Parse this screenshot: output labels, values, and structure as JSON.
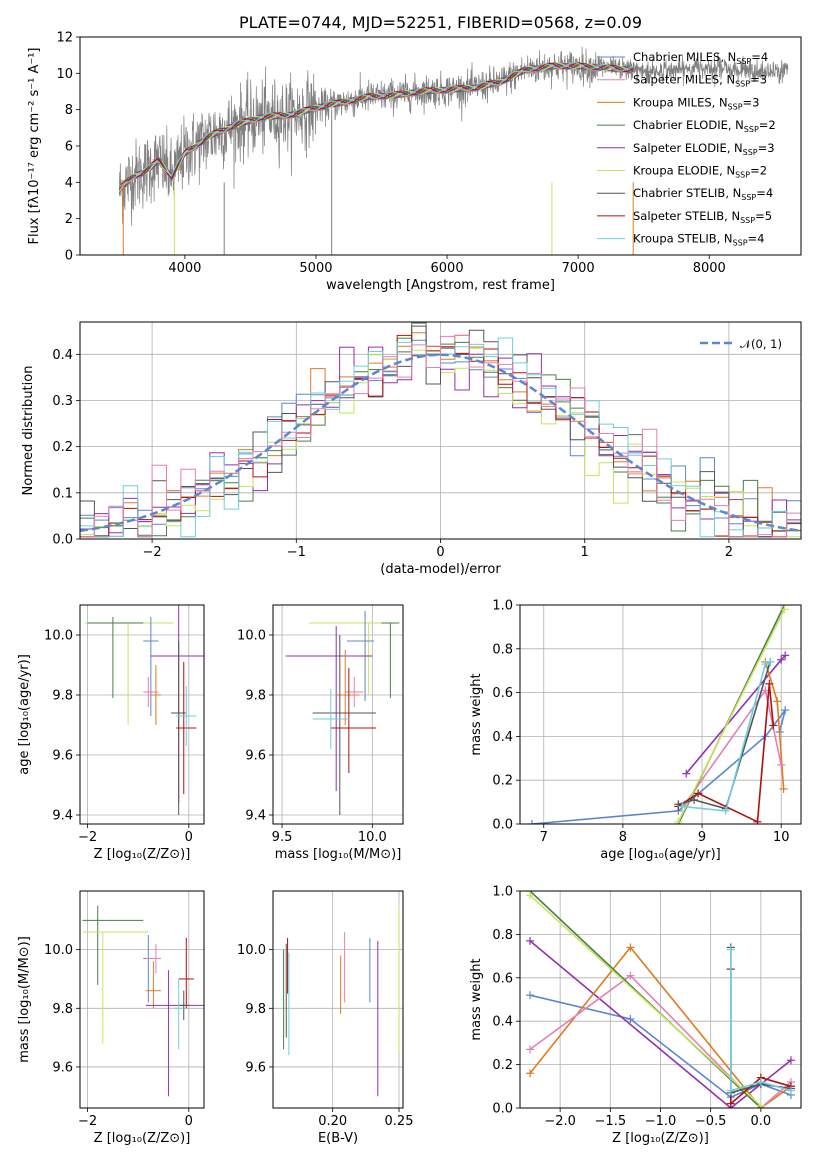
{
  "colors": {
    "blue": "#5b87d0",
    "orange": "#e07a20",
    "green": "#4a7d4a",
    "purple": "#9330b0",
    "yellowgreen": "#c6e45a",
    "darkgray": "#555555",
    "red": "#b01010",
    "cyan": "#6ecfdc",
    "pink": "#e57fb4",
    "gray": "#7f7f7f"
  },
  "chart_data": [
    {
      "id": "spectrum",
      "type": "line",
      "title": "PLATE=0744, MJD=52251, FIBERID=0568, z=0.09",
      "xlabel": "wavelength [Angstrom, rest frame]",
      "ylabel": "Flux [fλ10⁻¹⁷ erg cm⁻² s⁻¹ A⁻¹]",
      "xlim": [
        3200,
        8700
      ],
      "ylim": [
        0,
        12
      ],
      "xticks": [
        4000,
        5000,
        6000,
        7000,
        8000
      ],
      "yticks": [
        0,
        2,
        4,
        6,
        8,
        10,
        12
      ],
      "legend_position": "right",
      "observed_continuum": {
        "x": [
          3500,
          3600,
          3700,
          3800,
          3900,
          4000,
          4200,
          4400,
          4600,
          4800,
          5000,
          5200,
          5400,
          5600,
          5800,
          6000,
          6200,
          6400,
          6600,
          6800,
          7000,
          7200,
          7400,
          7600,
          7800,
          8000,
          8200,
          8400,
          8600
        ],
        "y": [
          3.6,
          4.3,
          4.6,
          5.2,
          4.3,
          5.6,
          6.6,
          7.2,
          7.6,
          7.7,
          8.1,
          8.4,
          8.7,
          8.8,
          9.0,
          9.1,
          9.2,
          9.5,
          10.2,
          10.4,
          10.4,
          10.3,
          10.2,
          10.1,
          10.2,
          10.4,
          10.2,
          10.0,
          10.3
        ]
      },
      "legend": [
        {
          "label": "Chabrier MILES, N",
          "sub": "SSP",
          "n": "=4",
          "color": "blue"
        },
        {
          "label": "Salpeter MILES, N",
          "sub": "SSP",
          "n": "=3",
          "color": "pink"
        },
        {
          "label": "Kroupa MILES, N",
          "sub": "SSP",
          "n": "=3",
          "color": "orange"
        },
        {
          "label": "Chabrier ELODIE, N",
          "sub": "SSP",
          "n": "=2",
          "color": "green"
        },
        {
          "label": "Salpeter ELODIE, N",
          "sub": "SSP",
          "n": "=3",
          "color": "purple"
        },
        {
          "label": "Kroupa ELODIE, N",
          "sub": "SSP",
          "n": "=2",
          "color": "yellowgreen"
        },
        {
          "label": "Chabrier STELIB, N",
          "sub": "SSP",
          "n": "=4",
          "color": "darkgray"
        },
        {
          "label": "Salpeter STELIB, N",
          "sub": "SSP",
          "n": "=5",
          "color": "red"
        },
        {
          "label": "Kroupa STELIB, N",
          "sub": "SSP",
          "n": "=4",
          "color": "cyan"
        }
      ]
    },
    {
      "id": "residuals",
      "type": "histogram",
      "xlabel": "(data-model)/error",
      "ylabel": "Normed distribution",
      "xlim": [
        -2.5,
        2.5
      ],
      "ylim": [
        0,
        0.47
      ],
      "xticks": [
        -2,
        -1,
        0,
        1,
        2
      ],
      "yticks": [
        0.0,
        0.1,
        0.2,
        0.3,
        0.4
      ],
      "legend_label": "𝒩(0, 1)",
      "legend_position": "top-right",
      "series_colors": [
        "blue",
        "orange",
        "green",
        "purple",
        "yellowgreen",
        "darkgray",
        "red",
        "cyan",
        "pink"
      ]
    },
    {
      "id": "age_vs_Z",
      "type": "errorbar",
      "xlabel": "Z [log₁₀(Z/Z⊙)]",
      "ylabel": "age  [log₁₀(age/yr)]",
      "xlim": [
        -2.15,
        0.3
      ],
      "ylim": [
        9.37,
        10.1
      ],
      "xticks": [
        -2,
        0
      ],
      "yticks": [
        9.4,
        9.6,
        9.8,
        10.0
      ],
      "points": [
        {
          "color": "yellowgreen",
          "x": -1.2,
          "y": 10.04,
          "xerr": [
            0.85,
            0.9
          ],
          "yerr": [
            0.34,
            0.0
          ]
        },
        {
          "color": "green",
          "x": -1.5,
          "y": 10.04,
          "xerr": [
            0.5,
            0.6
          ],
          "yerr": [
            0.25,
            0.02
          ]
        },
        {
          "color": "blue",
          "x": -0.75,
          "y": 9.98,
          "xerr": [
            0.15,
            0.15
          ],
          "yerr": [
            0.25,
            0.08
          ]
        },
        {
          "color": "purple",
          "x": -0.2,
          "y": 9.93,
          "xerr": [
            0.55,
            0.55
          ],
          "yerr": [
            0.49,
            0.2
          ]
        },
        {
          "color": "orange",
          "x": -0.65,
          "y": 9.8,
          "xerr": [
            0.1,
            0.1
          ],
          "yerr": [
            0.1,
            0.1
          ]
        },
        {
          "color": "pink",
          "x": -0.8,
          "y": 9.81,
          "xerr": [
            0.1,
            0.2
          ],
          "yerr": [
            0.05,
            0.05
          ]
        },
        {
          "color": "darkgray",
          "x": -0.2,
          "y": 9.74,
          "xerr": [
            0.15,
            0.15
          ],
          "yerr": [
            0.34,
            0.24
          ]
        },
        {
          "color": "red",
          "x": -0.1,
          "y": 9.69,
          "xerr": [
            0.15,
            0.25
          ],
          "yerr": [
            0.22,
            0.22
          ]
        },
        {
          "color": "cyan",
          "x": -0.05,
          "y": 9.73,
          "xerr": [
            0.2,
            0.2
          ],
          "yerr": [
            0.1,
            0.1
          ]
        }
      ]
    },
    {
      "id": "age_vs_mass",
      "type": "errorbar",
      "xlabel": "mass [log₁₀(M/M⊙)]",
      "ylabel": "",
      "xlim": [
        9.45,
        10.17
      ],
      "ylim": [
        9.37,
        10.1
      ],
      "xticks": [
        9.5,
        10.0
      ],
      "yticks": [
        9.4,
        9.6,
        9.8,
        10.0
      ],
      "points": [
        {
          "color": "yellowgreen",
          "x": 9.98,
          "y": 10.04,
          "xerr": [
            0.33,
            0.12
          ],
          "yerr": [
            0.24,
            0.0
          ]
        },
        {
          "color": "green",
          "x": 10.1,
          "y": 10.04,
          "xerr": [
            0.05,
            0.05
          ],
          "yerr": [
            0.25,
            0.0
          ]
        },
        {
          "color": "blue",
          "x": 9.96,
          "y": 9.98,
          "xerr": [
            0.1,
            0.05
          ],
          "yerr": [
            0.2,
            0.1
          ]
        },
        {
          "color": "purple",
          "x": 9.8,
          "y": 9.93,
          "xerr": [
            0.28,
            0.2
          ],
          "yerr": [
            0.45,
            0.1
          ]
        },
        {
          "color": "orange",
          "x": 9.85,
          "y": 9.8,
          "xerr": [
            0.05,
            0.08
          ],
          "yerr": [
            0.1,
            0.15
          ]
        },
        {
          "color": "pink",
          "x": 9.9,
          "y": 9.81,
          "xerr": [
            0.05,
            0.05
          ],
          "yerr": [
            0.05,
            0.05
          ]
        },
        {
          "color": "darkgray",
          "x": 9.82,
          "y": 9.74,
          "xerr": [
            0.15,
            0.2
          ],
          "yerr": [
            0.34,
            0.26
          ]
        },
        {
          "color": "red",
          "x": 9.87,
          "y": 9.69,
          "xerr": [
            0.1,
            0.15
          ],
          "yerr": [
            0.15,
            0.2
          ]
        },
        {
          "color": "cyan",
          "x": 9.77,
          "y": 9.72,
          "xerr": [
            0.1,
            0.1
          ],
          "yerr": [
            0.1,
            0.1
          ]
        }
      ]
    },
    {
      "id": "weight_vs_age",
      "type": "line",
      "xlabel": "age  [log₁₀(age/yr)]",
      "ylabel": "mass weight",
      "xlim": [
        6.7,
        10.25
      ],
      "ylim": [
        0,
        1.0
      ],
      "xticks": [
        7,
        8,
        9,
        10
      ],
      "yticks": [
        0.0,
        0.2,
        0.4,
        0.6,
        0.8,
        1.0
      ],
      "series": [
        {
          "color": "blue",
          "x": [
            6.85,
            8.7,
            9.8,
            10.05,
            9.98
          ],
          "y": [
            0.0,
            0.06,
            0.4,
            0.52,
            0.42
          ]
        },
        {
          "color": "purple",
          "x": [
            8.8,
            10.0,
            10.05
          ],
          "y": [
            0.23,
            0.75,
            0.77
          ]
        },
        {
          "color": "orange",
          "x": [
            9.8,
            9.95,
            10.03
          ],
          "y": [
            0.74,
            0.56,
            0.16
          ]
        },
        {
          "color": "pink",
          "x": [
            8.78,
            9.8,
            10.0
          ],
          "y": [
            0.09,
            0.61,
            0.27
          ]
        },
        {
          "color": "green",
          "x": [
            8.7,
            10.04
          ],
          "y": [
            0.0,
            1.0
          ]
        },
        {
          "color": "yellowgreen",
          "x": [
            8.7,
            10.04
          ],
          "y": [
            0.01,
            0.98
          ]
        },
        {
          "color": "red",
          "x": [
            8.7,
            8.95,
            9.7,
            9.85,
            9.9
          ],
          "y": [
            0.08,
            0.14,
            0.01,
            0.64,
            0.45
          ]
        },
        {
          "color": "darkgray",
          "x": [
            8.7,
            8.9,
            9.3,
            9.86
          ],
          "y": [
            0.09,
            0.11,
            0.07,
            0.74
          ]
        },
        {
          "color": "cyan",
          "x": [
            8.75,
            9.3,
            9.8,
            9.86
          ],
          "y": [
            0.08,
            0.06,
            0.73,
            0.74
          ]
        }
      ]
    },
    {
      "id": "mass_vs_Z",
      "type": "errorbar",
      "xlabel": "Z [log₁₀(Z/Z⊙)]",
      "ylabel": "mass [log₁₀(M/M⊙)]",
      "xlim": [
        -2.15,
        0.3
      ],
      "ylim": [
        9.46,
        10.2
      ],
      "xticks": [
        -2,
        0
      ],
      "yticks": [
        9.6,
        9.8,
        10.0
      ],
      "points": [
        {
          "color": "green",
          "x": -1.8,
          "y": 10.1,
          "xerr": [
            0.3,
            0.9
          ],
          "yerr": [
            0.22,
            0.05
          ]
        },
        {
          "color": "yellowgreen",
          "x": -1.7,
          "y": 10.06,
          "xerr": [
            0.4,
            0.9
          ],
          "yerr": [
            0.38,
            0.0
          ]
        },
        {
          "color": "blue",
          "x": -0.8,
          "y": 9.97,
          "xerr": [
            0.1,
            0.1
          ],
          "yerr": [
            0.15,
            0.08
          ]
        },
        {
          "color": "pink",
          "x": -0.65,
          "y": 9.97,
          "xerr": [
            0.2,
            0.1
          ],
          "yerr": [
            0.05,
            0.05
          ]
        },
        {
          "color": "orange",
          "x": -0.7,
          "y": 9.86,
          "xerr": [
            0.15,
            0.15
          ],
          "yerr": [
            0.06,
            0.1
          ]
        },
        {
          "color": "purple",
          "x": -0.4,
          "y": 9.81,
          "xerr": [
            0.45,
            0.7
          ],
          "yerr": [
            0.31,
            0.12
          ]
        },
        {
          "color": "red",
          "x": -0.05,
          "y": 9.9,
          "xerr": [
            0.15,
            0.15
          ],
          "yerr": [
            0.1,
            0.14
          ]
        },
        {
          "color": "darkgray",
          "x": -0.1,
          "y": 9.81,
          "xerr": [
            0.1,
            0.1
          ],
          "yerr": [
            0.05,
            0.05
          ]
        },
        {
          "color": "cyan",
          "x": -0.2,
          "y": 9.8,
          "xerr": [
            0.1,
            0.1
          ],
          "yerr": [
            0.14,
            0.1
          ]
        }
      ]
    },
    {
      "id": "mass_vs_ebv",
      "type": "errorbar",
      "xlabel": "E(B-V)",
      "ylabel": "",
      "xlim": [
        0.155,
        0.253
      ],
      "ylim": [
        9.46,
        10.2
      ],
      "xticks": [
        0.2,
        0.25
      ],
      "yticks": [
        9.6,
        9.8,
        10.0
      ],
      "points": [
        {
          "color": "green",
          "x": 0.163,
          "y": 9.85,
          "xerr": [
            0.0,
            0.0
          ],
          "yerr": [
            0.19,
            0.15
          ]
        },
        {
          "color": "darkgray",
          "x": 0.165,
          "y": 9.85,
          "xerr": [
            0.0,
            0.0
          ],
          "yerr": [
            0.15,
            0.17
          ]
        },
        {
          "color": "cyan",
          "x": 0.167,
          "y": 9.8,
          "xerr": [
            0.0,
            0.0
          ],
          "yerr": [
            0.16,
            0.19
          ]
        },
        {
          "color": "red",
          "x": 0.166,
          "y": 9.9,
          "xerr": [
            0.0,
            0.0
          ],
          "yerr": [
            0.05,
            0.14
          ]
        },
        {
          "color": "orange",
          "x": 0.206,
          "y": 9.88,
          "xerr": [
            0.0,
            0.0
          ],
          "yerr": [
            0.1,
            0.1
          ]
        },
        {
          "color": "pink",
          "x": 0.209,
          "y": 9.95,
          "xerr": [
            0.0,
            0.0
          ],
          "yerr": [
            0.13,
            0.11
          ]
        },
        {
          "color": "blue",
          "x": 0.228,
          "y": 9.97,
          "xerr": [
            0.0,
            0.0
          ],
          "yerr": [
            0.15,
            0.07
          ]
        },
        {
          "color": "purple",
          "x": 0.234,
          "y": 9.8,
          "xerr": [
            0.0,
            0.0
          ],
          "yerr": [
            0.3,
            0.23
          ]
        },
        {
          "color": "yellowgreen",
          "x": 0.25,
          "y": 9.95,
          "xerr": [
            0.0,
            0.0
          ],
          "yerr": [
            0.3,
            0.2
          ]
        }
      ]
    },
    {
      "id": "weight_vs_Z",
      "type": "line",
      "xlabel": "Z [log₁₀(Z/Z⊙)]",
      "ylabel": "mass weight",
      "xlim": [
        -2.4,
        0.4
      ],
      "ylim": [
        0,
        1.0
      ],
      "xticks": [
        -2.0,
        -1.5,
        -1.0,
        -0.5,
        0.0
      ],
      "yticks": [
        0.0,
        0.2,
        0.4,
        0.6,
        0.8,
        1.0
      ],
      "series": [
        {
          "color": "blue",
          "x": [
            -2.3,
            -1.3,
            -0.3,
            0.0,
            0.3
          ],
          "y": [
            0.52,
            0.41,
            0.05,
            0.11,
            0.06
          ]
        },
        {
          "color": "purple",
          "x": [
            -2.3,
            -0.3,
            0.3
          ],
          "y": [
            0.77,
            0.0,
            0.22
          ]
        },
        {
          "color": "orange",
          "x": [
            -2.3,
            -1.3,
            0.0,
            0.3
          ],
          "y": [
            0.16,
            0.74,
            0.0,
            0.1
          ]
        },
        {
          "color": "pink",
          "x": [
            -2.3,
            -1.3,
            0.0,
            0.3
          ],
          "y": [
            0.27,
            0.61,
            0.0,
            0.12
          ]
        },
        {
          "color": "green",
          "x": [
            -2.3,
            0.0
          ],
          "y": [
            1.0,
            0.0
          ]
        },
        {
          "color": "yellowgreen",
          "x": [
            -2.3,
            0.0
          ],
          "y": [
            0.98,
            0.01
          ]
        },
        {
          "color": "red",
          "x": [
            -0.3,
            -0.3,
            0.0,
            0.3
          ],
          "y": [
            0.64,
            0.02,
            0.14,
            0.1
          ]
        },
        {
          "color": "darkgray",
          "x": [
            -0.3,
            -0.3,
            0.0,
            0.3
          ],
          "y": [
            0.74,
            0.07,
            0.11,
            0.09
          ]
        },
        {
          "color": "cyan",
          "x": [
            -0.3,
            -0.3,
            0.0,
            0.3
          ],
          "y": [
            0.73,
            0.08,
            0.12,
            0.08
          ]
        }
      ]
    }
  ]
}
